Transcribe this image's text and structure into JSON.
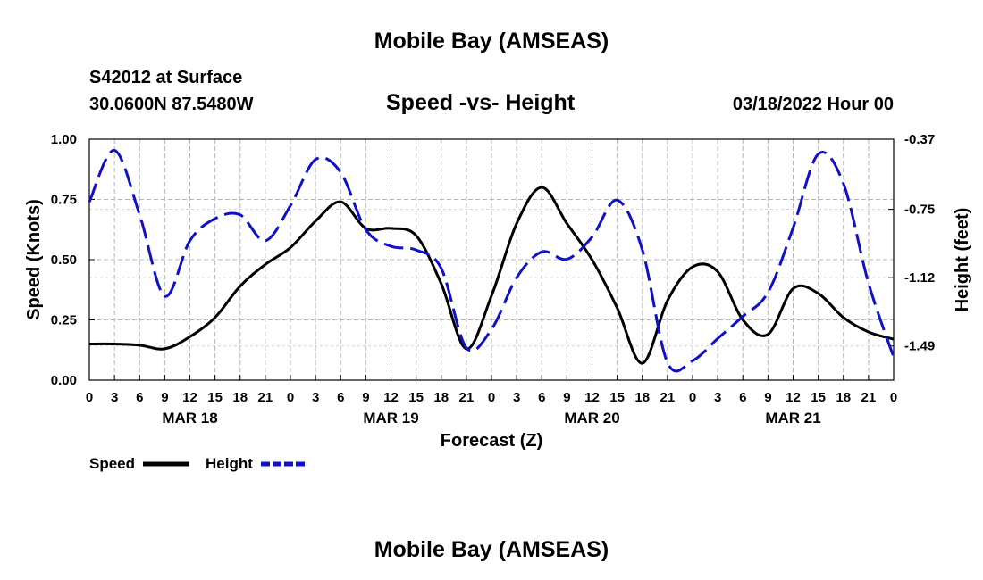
{
  "header": {
    "title": "Mobile Bay (AMSEAS)",
    "station": "S42012 at Surface",
    "coords": "30.0600N  87.5480W",
    "date": "03/18/2022 Hour 00",
    "repeat_title": "Mobile Bay (AMSEAS)"
  },
  "legend": {
    "speed_label": "Speed",
    "height_label": "Height"
  },
  "colors": {
    "speed": "#000000",
    "height": "#1010c8",
    "grid": "#b4b4b4"
  },
  "chart_data": {
    "type": "line",
    "title": "Speed -vs- Height",
    "xlabel": "Forecast (Z)",
    "ylabel": "Speed (Knots)",
    "ylabel_right": "Height (feet)",
    "x_unit": "hours from 03/18/2022 00Z",
    "xlim": [
      0,
      96
    ],
    "ylim": [
      0,
      1
    ],
    "ylim_right": [
      -1.675,
      -0.37
    ],
    "x_tick_hours": [
      0,
      3,
      6,
      9,
      12,
      15,
      18,
      21,
      24,
      27,
      30,
      33,
      36,
      39,
      42,
      45,
      48,
      51,
      54,
      57,
      60,
      63,
      66,
      69,
      72,
      75,
      78,
      81,
      84,
      87,
      90,
      93,
      96
    ],
    "x_tick_labels": [
      "0",
      "3",
      "6",
      "9",
      "12",
      "15",
      "18",
      "21",
      "0",
      "3",
      "6",
      "9",
      "12",
      "15",
      "18",
      "21",
      "0",
      "3",
      "6",
      "9",
      "12",
      "15",
      "18",
      "21",
      "0",
      "3",
      "6",
      "9",
      "12",
      "15",
      "18",
      "21",
      "0"
    ],
    "day_labels": [
      {
        "hour": 12,
        "label": "MAR 18"
      },
      {
        "hour": 36,
        "label": "MAR 19"
      },
      {
        "hour": 60,
        "label": "MAR 20"
      },
      {
        "hour": 84,
        "label": "MAR 21"
      }
    ],
    "y_ticks": [
      0,
      0.25,
      0.5,
      0.75,
      1.0
    ],
    "y_tick_labels": [
      "0.00",
      "0.25",
      "0.50",
      "0.75",
      "1.00"
    ],
    "y_right_ticks": [
      -0.37,
      -0.75,
      -1.12,
      -1.49
    ],
    "y_right_tick_labels": [
      "-0.37",
      "-0.75",
      "-1.12",
      "-1.49"
    ],
    "series": [
      {
        "name": "Speed",
        "axis": "left",
        "style": "solid",
        "x": [
          0,
          3,
          6,
          9,
          12,
          15,
          18,
          21,
          24,
          27,
          30,
          33,
          36,
          39,
          42,
          45,
          48,
          51,
          54,
          57,
          60,
          63,
          66,
          69,
          72,
          75,
          78,
          81,
          84,
          87,
          90,
          93,
          96
        ],
        "values": [
          0.15,
          0.15,
          0.145,
          0.13,
          0.18,
          0.26,
          0.39,
          0.48,
          0.55,
          0.66,
          0.74,
          0.63,
          0.63,
          0.6,
          0.4,
          0.13,
          0.35,
          0.65,
          0.8,
          0.65,
          0.5,
          0.3,
          0.07,
          0.33,
          0.47,
          0.45,
          0.25,
          0.19,
          0.38,
          0.36,
          0.26,
          0.2,
          0.17
        ]
      },
      {
        "name": "Height",
        "axis": "right",
        "style": "dashed",
        "x": [
          0,
          3,
          6,
          9,
          12,
          15,
          18,
          21,
          24,
          27,
          30,
          33,
          36,
          39,
          42,
          45,
          48,
          51,
          54,
          57,
          60,
          63,
          66,
          69,
          72,
          75,
          78,
          81,
          84,
          87,
          90,
          93,
          96
        ],
        "values": [
          -0.71,
          -0.43,
          -0.78,
          -1.22,
          -0.92,
          -0.8,
          -0.78,
          -0.92,
          -0.73,
          -0.48,
          -0.55,
          -0.86,
          -0.95,
          -0.97,
          -1.07,
          -1.5,
          -1.4,
          -1.12,
          -0.98,
          -1.02,
          -0.9,
          -0.7,
          -0.97,
          -1.58,
          -1.57,
          -1.45,
          -1.33,
          -1.2,
          -0.85,
          -0.45,
          -0.61,
          -1.15,
          -1.55
        ]
      }
    ]
  }
}
